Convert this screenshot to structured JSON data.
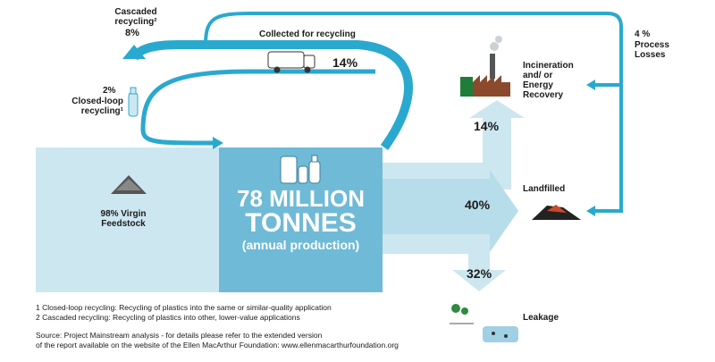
{
  "labels": {
    "cascaded": "Cascaded recycling²",
    "cascaded_pct": "8%",
    "collected": "Collected for recycling",
    "collected_pct": "14%",
    "closed_loop_pct": "2%",
    "closed_loop": "Closed-loop recycling¹",
    "process_losses_pct": "4 %",
    "process_losses": "Process Losses",
    "incineration": "Incineration and/ or Energy Recovery",
    "incineration_pct": "14%",
    "landfilled": "Landfilled",
    "landfilled_pct": "40%",
    "leakage": "Leakage",
    "leakage_pct": "32%",
    "virgin": "98% Virgin Feedstock"
  },
  "center": {
    "line1": "78 MILLION",
    "line2": "TONNES",
    "line3": "(annual production)"
  },
  "footnotes": {
    "note1": "1 Closed-loop recycling: Recycling of plastics into the same or similar-quality application",
    "note2": "2 Cascaded recycling: Recycling of plastics into other, lower-value applications",
    "source1": "Source: Project Mainstream analysis - for details please refer to the extended version",
    "source2": "of the report available on the website of the Ellen MacArthur Foundation: www.ellenmacarthurfoundation.org"
  },
  "colors": {
    "light_flow": "#cde7f1",
    "mid_flow": "#9fd0e3",
    "center_box": "#6fbad7",
    "loop": "#2aa9cf"
  },
  "icons": [
    "truck-icon",
    "bottles-icon",
    "factory-icon",
    "pellets-icon",
    "landfill-icon",
    "leakage-icon",
    "bottle-icon"
  ]
}
